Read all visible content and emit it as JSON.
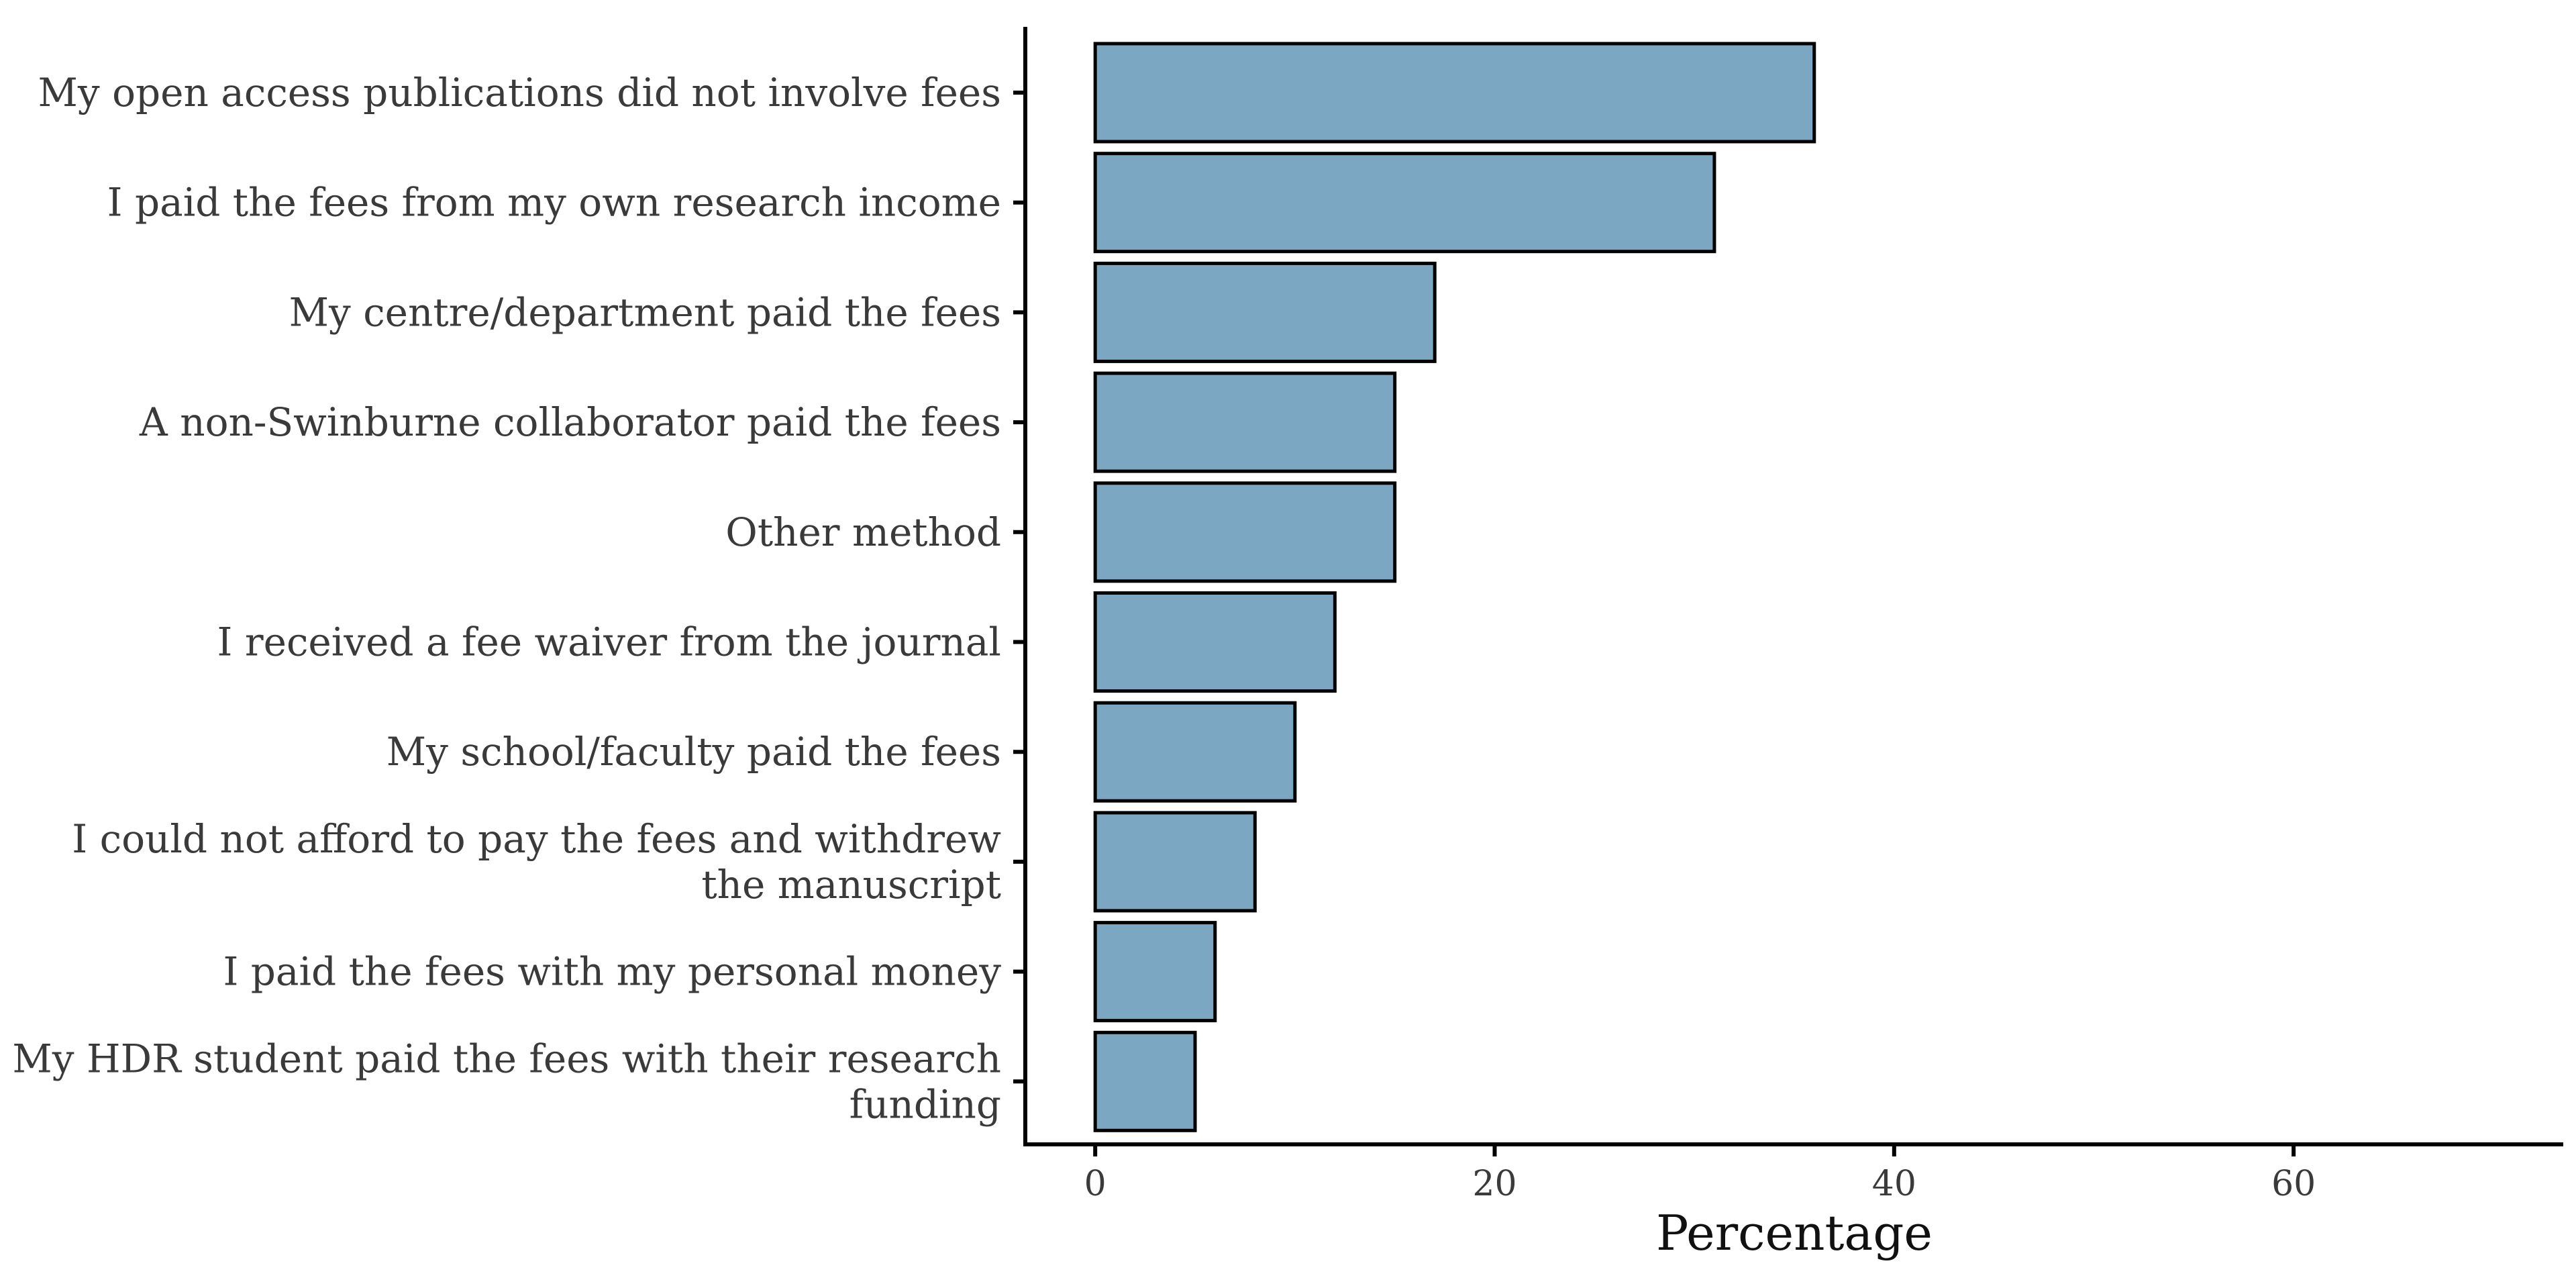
{
  "chart_data": {
    "type": "bar",
    "orientation": "horizontal",
    "categories": [
      "My open access publications did not involve fees",
      "I paid the fees from my own research income",
      "My centre/department paid the fees",
      "A non-Swinburne collaborator paid the fees",
      "Other method",
      "I received a fee waiver from the journal",
      "My school/faculty paid the fees",
      "I could not afford to pay the fees and withdrew\nthe manuscript",
      "I paid the fees with my personal money",
      "My HDR student paid the fees with their research\nfunding"
    ],
    "values": [
      36,
      31,
      17,
      15,
      15,
      12,
      10,
      8,
      6,
      5
    ],
    "xlabel": "Percentage",
    "ylabel": "",
    "xlim": [
      -3.5,
      73.5
    ],
    "xticks": [
      0,
      20,
      40,
      60
    ],
    "xtick_labels": [
      "0",
      "20",
      "40",
      "60"
    ],
    "grid": false,
    "bar_color": "#7ba7c3",
    "bar_edge_color": "#000000"
  }
}
